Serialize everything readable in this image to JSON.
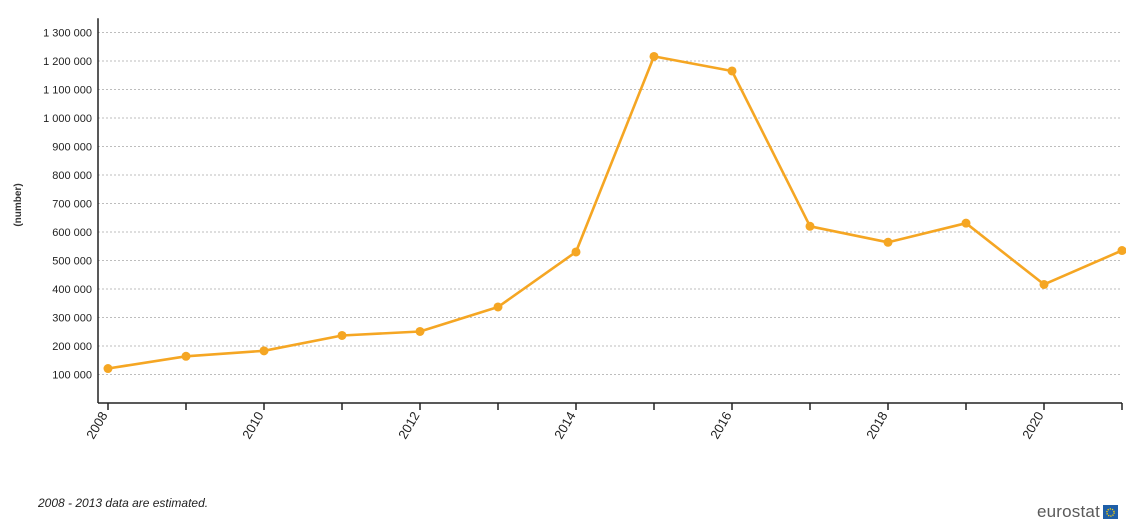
{
  "chart_data": {
    "type": "line",
    "title": "",
    "xlabel": "",
    "ylabel": "(number)",
    "x": [
      2008,
      2009,
      2010,
      2011,
      2012,
      2013,
      2014,
      2015,
      2016,
      2017,
      2018,
      2019,
      2020,
      2021
    ],
    "x_tick_labels": [
      "2008",
      "2010",
      "2012",
      "2014",
      "2016",
      "2018",
      "2020"
    ],
    "y_tick_labels": [
      "100 000",
      "200 000",
      "300 000",
      "400 000",
      "500 000",
      "600 000",
      "700 000",
      "800 000",
      "900 000",
      "1 000 000",
      "1 100 000",
      "1 200 000",
      "1 300 000"
    ],
    "ylim": [
      0,
      1350000
    ],
    "grid": true,
    "series": [
      {
        "color": "#f5a623",
        "values": [
          121000,
          164000,
          183000,
          237000,
          251000,
          337000,
          530000,
          1216000,
          1165000,
          620000,
          564000,
          631000,
          416000,
          535000
        ]
      }
    ]
  },
  "footnote": "2008 - 2013 data are estimated.",
  "brand": {
    "name": "eurostat",
    "flag_color": "#1f5fa8"
  }
}
